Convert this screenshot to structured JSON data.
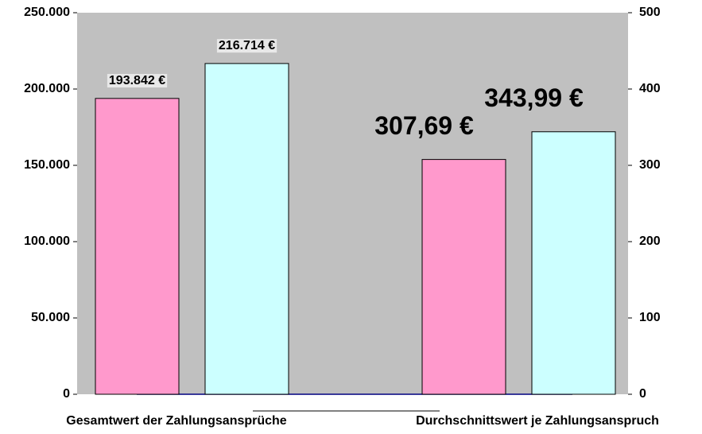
{
  "chart_data": {
    "type": "bar",
    "categories": [
      "Gesamtwert der Zahlungsansprüche",
      "Durchschnittswert je Zahlungsanspruch"
    ],
    "series": [
      {
        "color": "#ff99cc",
        "values": [
          193842,
          null
        ],
        "value_labels": [
          "193.842 €",
          null
        ]
      },
      {
        "color": "#ccffff",
        "values": [
          216714,
          null
        ],
        "value_labels": [
          "216.714 €",
          null
        ]
      },
      {
        "color": "#ff99cc",
        "axis": "y2",
        "values": [
          null,
          307.69
        ],
        "value_labels": [
          null,
          "307,69 €"
        ]
      },
      {
        "color": "#ccffff",
        "axis": "y2",
        "values": [
          null,
          343.99
        ],
        "value_labels": [
          null,
          "343,99 €"
        ]
      }
    ],
    "ylim": [
      0,
      250000
    ],
    "yticks": [
      0,
      {
        "value": 50000,
        "label": "50.000"
      },
      {
        "value": 100000,
        "label": "100.000"
      },
      {
        "value": 150000,
        "label": "150.000"
      },
      {
        "value": 200000,
        "label": "200.000"
      },
      {
        "value": 250000,
        "label": "250.000"
      }
    ],
    "y2lim": [
      0,
      500
    ],
    "y2ticks": [
      0,
      100,
      200,
      300,
      400,
      500
    ],
    "plot_background": "#c0c0c0"
  }
}
